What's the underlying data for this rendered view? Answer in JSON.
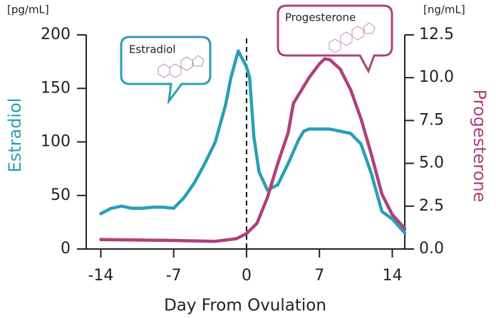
{
  "chart_data": {
    "type": "line",
    "unit_left": "[pg/mL]",
    "unit_right": "[ng/mL]",
    "y_label": "Estradiol",
    "y2_label": "Progesterone",
    "x_label": "Day From Ovulation",
    "annotations": [
      "Estradiol",
      "Progesterone"
    ],
    "xlim": [
      -15.4,
      15.2
    ],
    "xticks": [
      -14,
      -7,
      0,
      7,
      14
    ],
    "ylim": [
      0,
      200
    ],
    "yticks": [
      0,
      50,
      100,
      150,
      200
    ],
    "y2lim": [
      0,
      12.5
    ],
    "y2ticks": [
      {
        "value": 0,
        "label": "0.0"
      },
      {
        "value": 2.5,
        "label": "2.5"
      },
      {
        "value": 5,
        "label": "5.0"
      },
      {
        "value": 7.5,
        "label": "7.5"
      },
      {
        "value": 10,
        "label": "10.0"
      },
      {
        "value": 12.5,
        "label": "12.5"
      }
    ],
    "series": [
      {
        "name": "Estradiol",
        "color": "#2a9fb5",
        "x": [
          -14,
          -13,
          -12,
          -11,
          -10,
          -9,
          -8,
          -7,
          -6,
          -5,
          -4,
          -3,
          -2,
          -1.5,
          -1,
          -0.8,
          0,
          0.3,
          0.7,
          1.2,
          2,
          3,
          4,
          5,
          5.5,
          6,
          8,
          10,
          11,
          12,
          13,
          14,
          15.2
        ],
        "values": [
          33,
          38,
          40,
          38,
          38,
          39,
          39,
          38,
          48,
          62,
          80,
          100,
          135,
          160,
          178,
          185,
          170,
          160,
          105,
          72,
          55,
          60,
          80,
          102,
          110,
          112,
          112,
          108,
          98,
          70,
          35,
          28,
          15
        ]
      },
      {
        "name": "Progesterone",
        "color": "#b0407a",
        "axis": "y2",
        "x": [
          -14,
          -7,
          -3,
          -1,
          0,
          1,
          2,
          3,
          4,
          4.5,
          5,
          6,
          7,
          7.5,
          8,
          9,
          10,
          11,
          12,
          13,
          14,
          15.2
        ],
        "values": [
          0.55,
          0.5,
          0.45,
          0.6,
          0.9,
          1.5,
          3,
          5,
          6.8,
          8.5,
          9,
          10,
          10.8,
          11.1,
          11.05,
          10.5,
          9.3,
          7.6,
          5.5,
          3.2,
          2,
          1.2
        ]
      }
    ]
  }
}
